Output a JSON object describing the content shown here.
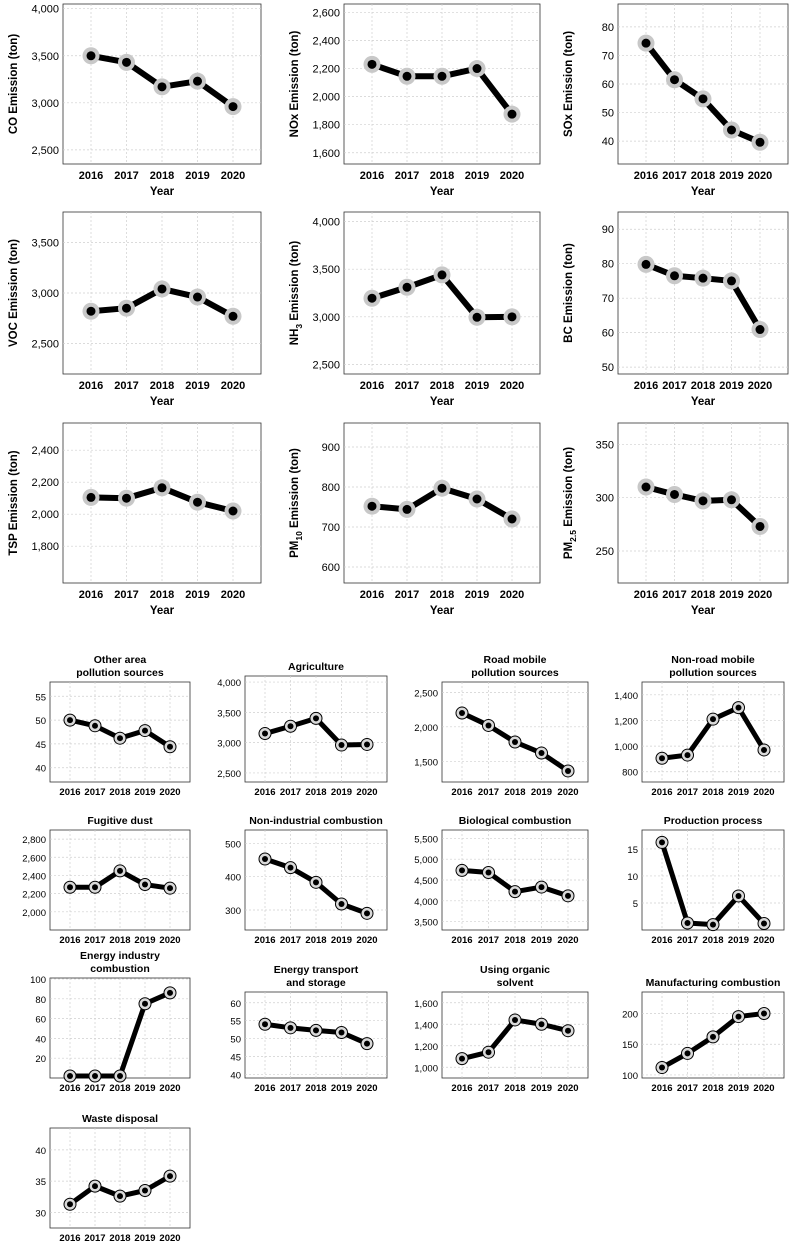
{
  "chart_data": [
    {
      "id": "co",
      "type": "line",
      "title": "",
      "ylabel": "CO Emission (ton)",
      "ylabel_main": "CO Emission (ton)",
      "xlabel": "Year",
      "x": [
        2016,
        2017,
        2018,
        2019,
        2020
      ],
      "categories": [
        "2016",
        "2017",
        "2018",
        "2019",
        "2020"
      ],
      "values": [
        3500,
        3430,
        3170,
        3230,
        2960
      ],
      "ylim": [
        2350,
        4050
      ],
      "yticks": [
        2500,
        3000,
        3500,
        4000
      ],
      "ytick_labels": [
        "2,500",
        "3,000",
        "3,500",
        "4,000"
      ]
    },
    {
      "id": "nox",
      "type": "line",
      "title": "",
      "ylabel": "NOx Emission (ton)",
      "ylabel_main": "NOx Emission (ton)",
      "xlabel": "Year",
      "x": [
        2016,
        2017,
        2018,
        2019,
        2020
      ],
      "categories": [
        "2016",
        "2017",
        "2018",
        "2019",
        "2020"
      ],
      "values": [
        2230,
        2145,
        2145,
        2200,
        1875
      ],
      "ylim": [
        1520,
        2660
      ],
      "yticks": [
        1600,
        1800,
        2000,
        2200,
        2400,
        2600
      ],
      "ytick_labels": [
        "1,600",
        "1,800",
        "2,000",
        "2,200",
        "2,400",
        "2,600"
      ]
    },
    {
      "id": "sox",
      "type": "line",
      "title": "",
      "ylabel": "SOx Emission (ton)",
      "ylabel_main": "SOx Emission (ton)",
      "xlabel": "Year",
      "x": [
        2016,
        2017,
        2018,
        2019,
        2020
      ],
      "categories": [
        "2016",
        "2017",
        "2018",
        "2019",
        "2020"
      ],
      "values": [
        74.3,
        61.5,
        54.8,
        43.9,
        39.6
      ],
      "ylim": [
        32,
        88
      ],
      "yticks": [
        40,
        50,
        60,
        70,
        80
      ],
      "ytick_labels": [
        "40",
        "50",
        "60",
        "70",
        "80"
      ]
    },
    {
      "id": "voc",
      "type": "line",
      "title": "",
      "ylabel": "VOC Emission (ton)",
      "ylabel_main": "VOC Emission (ton)",
      "xlabel": "Year",
      "x": [
        2016,
        2017,
        2018,
        2019,
        2020
      ],
      "categories": [
        "2016",
        "2017",
        "2018",
        "2019",
        "2020"
      ],
      "values": [
        2820,
        2850,
        3040,
        2960,
        2770
      ],
      "ylim": [
        2200,
        3800
      ],
      "yticks": [
        2500,
        3000,
        3500
      ],
      "ytick_labels": [
        "2,500",
        "3,000",
        "3,500"
      ]
    },
    {
      "id": "nh3",
      "type": "line",
      "title": "",
      "ylabel": "NH3 Emission (ton)",
      "ylabel_main": "NH",
      "ylabel_sub": "3",
      "ylabel_rest": " Emission (ton)",
      "xlabel": "Year",
      "x": [
        2016,
        2017,
        2018,
        2019,
        2020
      ],
      "categories": [
        "2016",
        "2017",
        "2018",
        "2019",
        "2020"
      ],
      "values": [
        3195,
        3310,
        3440,
        2995,
        3000
      ],
      "ylim": [
        2400,
        4100
      ],
      "yticks": [
        2500,
        3000,
        3500,
        4000
      ],
      "ytick_labels": [
        "2,500",
        "3,000",
        "3,500",
        "4,000"
      ]
    },
    {
      "id": "bc",
      "type": "line",
      "title": "",
      "ylabel": "BC Emission (ton)",
      "ylabel_main": "BC Emission (ton)",
      "xlabel": "Year",
      "x": [
        2016,
        2017,
        2018,
        2019,
        2020
      ],
      "categories": [
        "2016",
        "2017",
        "2018",
        "2019",
        "2020"
      ],
      "values": [
        79.8,
        76.5,
        75.8,
        75.0,
        60.9
      ],
      "ylim": [
        48,
        95
      ],
      "yticks": [
        50,
        60,
        70,
        80,
        90
      ],
      "ytick_labels": [
        "50",
        "60",
        "70",
        "80",
        "90"
      ]
    },
    {
      "id": "tsp",
      "type": "line",
      "title": "",
      "ylabel": "TSP Emission (ton)",
      "ylabel_main": "TSP Emission (ton)",
      "xlabel": "Year",
      "x": [
        2016,
        2017,
        2018,
        2019,
        2020
      ],
      "categories": [
        "2016",
        "2017",
        "2018",
        "2019",
        "2020"
      ],
      "values": [
        2105,
        2100,
        2165,
        2075,
        2020
      ],
      "ylim": [
        1570,
        2570
      ],
      "yticks": [
        1800,
        2000,
        2200,
        2400
      ],
      "ytick_labels": [
        "1,800",
        "2,000",
        "2,200",
        "2,400"
      ]
    },
    {
      "id": "pm10",
      "type": "line",
      "title": "",
      "ylabel": "PM10 Emission (ton)",
      "ylabel_main": "PM",
      "ylabel_sub": "10",
      "ylabel_rest": " Emission (ton)",
      "xlabel": "Year",
      "x": [
        2016,
        2017,
        2018,
        2019,
        2020
      ],
      "categories": [
        "2016",
        "2017",
        "2018",
        "2019",
        "2020"
      ],
      "values": [
        752,
        744,
        797,
        770,
        720
      ],
      "ylim": [
        560,
        960
      ],
      "yticks": [
        600,
        700,
        800,
        900
      ],
      "ytick_labels": [
        "600",
        "700",
        "800",
        "900"
      ]
    },
    {
      "id": "pm25",
      "type": "line",
      "title": "",
      "ylabel": "PM2.5 Emission (ton)",
      "ylabel_main": "PM",
      "ylabel_sub": "2.5",
      "ylabel_rest": " Emission (ton)",
      "xlabel": "Year",
      "x": [
        2016,
        2017,
        2018,
        2019,
        2020
      ],
      "categories": [
        "2016",
        "2017",
        "2018",
        "2019",
        "2020"
      ],
      "values": [
        310,
        303,
        297,
        298,
        273
      ],
      "ylim": [
        220,
        370
      ],
      "yticks": [
        250,
        300,
        350
      ],
      "ytick_labels": [
        "250",
        "300",
        "350"
      ]
    },
    {
      "id": "other-area",
      "type": "line",
      "title": "Other area pollution sources",
      "title_lines": [
        "Other area",
        "pollution sources"
      ],
      "xlabel": "",
      "ylabel": "",
      "x": [
        2016,
        2017,
        2018,
        2019,
        2020
      ],
      "categories": [
        "2016",
        "2017",
        "2018",
        "2019",
        "2020"
      ],
      "values": [
        50.0,
        48.8,
        46.2,
        47.8,
        44.4
      ],
      "ylim": [
        37,
        58
      ],
      "yticks": [
        40,
        45,
        50,
        55
      ],
      "ytick_labels": [
        "40",
        "45",
        "50",
        "55"
      ]
    },
    {
      "id": "agriculture",
      "type": "line",
      "title": "Agriculture",
      "title_lines": [
        "Agriculture"
      ],
      "xlabel": "",
      "ylabel": "",
      "x": [
        2016,
        2017,
        2018,
        2019,
        2020
      ],
      "categories": [
        "2016",
        "2017",
        "2018",
        "2019",
        "2020"
      ],
      "values": [
        3150,
        3270,
        3400,
        2960,
        2970
      ],
      "ylim": [
        2350,
        4100
      ],
      "yticks": [
        2500,
        3000,
        3500,
        4000
      ],
      "ytick_labels": [
        "2,500",
        "3,000",
        "3,500",
        "4,000"
      ]
    },
    {
      "id": "road-mobile",
      "type": "line",
      "title": "Road mobile pollution sources",
      "title_lines": [
        "Road mobile",
        "pollution sources"
      ],
      "xlabel": "",
      "ylabel": "",
      "x": [
        2016,
        2017,
        2018,
        2019,
        2020
      ],
      "categories": [
        "2016",
        "2017",
        "2018",
        "2019",
        "2020"
      ],
      "values": [
        2200,
        2020,
        1780,
        1620,
        1360
      ],
      "ylim": [
        1200,
        2650
      ],
      "yticks": [
        1500,
        2000,
        2500
      ],
      "ytick_labels": [
        "1,500",
        "2,000",
        "2,500"
      ]
    },
    {
      "id": "non-road-mobile",
      "type": "line",
      "title": "Non-road mobile pollution sources",
      "title_lines": [
        "Non-road mobile",
        "pollution sources"
      ],
      "xlabel": "",
      "ylabel": "",
      "x": [
        2016,
        2017,
        2018,
        2019,
        2020
      ],
      "categories": [
        "2016",
        "2017",
        "2018",
        "2019",
        "2020"
      ],
      "values": [
        905,
        930,
        1210,
        1300,
        970
      ],
      "ylim": [
        720,
        1500
      ],
      "yticks": [
        800,
        1000,
        1200,
        1400
      ],
      "ytick_labels": [
        "800",
        "1,000",
        "1,200",
        "1,400"
      ]
    },
    {
      "id": "fugitive-dust",
      "type": "line",
      "title": "Fugitive dust",
      "title_lines": [
        "Fugitive dust"
      ],
      "xlabel": "",
      "ylabel": "",
      "x": [
        2016,
        2017,
        2018,
        2019,
        2020
      ],
      "categories": [
        "2016",
        "2017",
        "2018",
        "2019",
        "2020"
      ],
      "values": [
        2270,
        2270,
        2450,
        2300,
        2260
      ],
      "ylim": [
        1800,
        2900
      ],
      "yticks": [
        2000,
        2200,
        2400,
        2600,
        2800
      ],
      "ytick_labels": [
        "2,000",
        "2,200",
        "2,400",
        "2,600",
        "2,800"
      ]
    },
    {
      "id": "non-industrial",
      "type": "line",
      "title": "Non-industrial combustion",
      "title_lines": [
        "Non-industrial combustion"
      ],
      "xlabel": "",
      "ylabel": "",
      "x": [
        2016,
        2017,
        2018,
        2019,
        2020
      ],
      "categories": [
        "2016",
        "2017",
        "2018",
        "2019",
        "2020"
      ],
      "values": [
        453,
        427,
        383,
        318,
        290
      ],
      "ylim": [
        240,
        540
      ],
      "yticks": [
        300,
        400,
        500
      ],
      "ytick_labels": [
        "300",
        "400",
        "500"
      ]
    },
    {
      "id": "biological",
      "type": "line",
      "title": "Biological combustion",
      "title_lines": [
        "Biological combustion"
      ],
      "xlabel": "",
      "ylabel": "",
      "x": [
        2016,
        2017,
        2018,
        2019,
        2020
      ],
      "categories": [
        "2016",
        "2017",
        "2018",
        "2019",
        "2020"
      ],
      "values": [
        4730,
        4680,
        4220,
        4330,
        4120
      ],
      "ylim": [
        3300,
        5700
      ],
      "yticks": [
        3500,
        4000,
        4500,
        5000,
        5500
      ],
      "ytick_labels": [
        "3,500",
        "4,000",
        "4,500",
        "5,000",
        "5,500"
      ]
    },
    {
      "id": "production",
      "type": "line",
      "title": "Production process",
      "title_lines": [
        "Production process"
      ],
      "xlabel": "",
      "ylabel": "",
      "x": [
        2016,
        2017,
        2018,
        2019,
        2020
      ],
      "categories": [
        "2016",
        "2017",
        "2018",
        "2019",
        "2020"
      ],
      "values": [
        16.2,
        1.3,
        1.0,
        6.3,
        1.2
      ],
      "ylim": [
        0,
        18.5
      ],
      "yticks": [
        5,
        10,
        15
      ],
      "ytick_labels": [
        "5",
        "10",
        "15"
      ]
    },
    {
      "id": "energy-industry",
      "type": "line",
      "title": "Energy industry combustion",
      "title_lines": [
        "Energy industry",
        "combustion"
      ],
      "xlabel": "",
      "ylabel": "",
      "x": [
        2016,
        2017,
        2018,
        2019,
        2020
      ],
      "categories": [
        "2016",
        "2017",
        "2018",
        "2019",
        "2020"
      ],
      "values": [
        2,
        2,
        2,
        75,
        86
      ],
      "ylim": [
        0,
        101
      ],
      "yticks": [
        20,
        40,
        60,
        80,
        100
      ],
      "ytick_labels": [
        "20",
        "40",
        "60",
        "80",
        "100"
      ]
    },
    {
      "id": "energy-transport",
      "type": "line",
      "title": "Energy transport and storage",
      "title_lines": [
        "Energy transport",
        "and storage"
      ],
      "xlabel": "",
      "ylabel": "",
      "x": [
        2016,
        2017,
        2018,
        2019,
        2020
      ],
      "categories": [
        "2016",
        "2017",
        "2018",
        "2019",
        "2020"
      ],
      "values": [
        54.0,
        53.0,
        52.3,
        51.7,
        48.6
      ],
      "ylim": [
        39,
        63
      ],
      "yticks": [
        40,
        45,
        50,
        55,
        60
      ],
      "ytick_labels": [
        "40",
        "45",
        "50",
        "55",
        "60"
      ]
    },
    {
      "id": "organic-solvent",
      "type": "line",
      "title": "Using organic solvent",
      "title_lines": [
        "Using organic",
        "solvent"
      ],
      "xlabel": "",
      "ylabel": "",
      "x": [
        2016,
        2017,
        2018,
        2019,
        2020
      ],
      "categories": [
        "2016",
        "2017",
        "2018",
        "2019",
        "2020"
      ],
      "values": [
        1080,
        1140,
        1440,
        1400,
        1340
      ],
      "ylim": [
        900,
        1700
      ],
      "yticks": [
        1000,
        1200,
        1400,
        1600
      ],
      "ytick_labels": [
        "1,000",
        "1,200",
        "1,400",
        "1,600"
      ]
    },
    {
      "id": "manufacturing",
      "type": "line",
      "title": "Manufacturing combustion",
      "title_lines": [
        "Manufacturing combustion"
      ],
      "xlabel": "",
      "ylabel": "",
      "x": [
        2016,
        2017,
        2018,
        2019,
        2020
      ],
      "categories": [
        "2016",
        "2017",
        "2018",
        "2019",
        "2020"
      ],
      "values": [
        112,
        135,
        162,
        195,
        200
      ],
      "ylim": [
        95,
        235
      ],
      "yticks": [
        100,
        150,
        200
      ],
      "ytick_labels": [
        "100",
        "150",
        "200"
      ]
    },
    {
      "id": "waste",
      "type": "line",
      "title": "Waste disposal",
      "title_lines": [
        "Waste disposal"
      ],
      "xlabel": "",
      "ylabel": "",
      "x": [
        2016,
        2017,
        2018,
        2019,
        2020
      ],
      "categories": [
        "2016",
        "2017",
        "2018",
        "2019",
        "2020"
      ],
      "values": [
        31.3,
        34.2,
        32.6,
        33.5,
        35.8
      ],
      "ylim": [
        27.5,
        43.5
      ],
      "yticks": [
        30,
        35,
        40
      ],
      "ytick_labels": [
        "30",
        "35",
        "40"
      ]
    }
  ]
}
